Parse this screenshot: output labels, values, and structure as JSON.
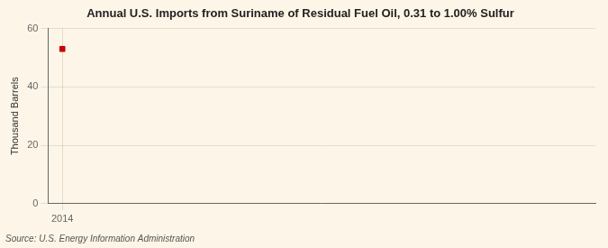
{
  "chart_data": {
    "type": "scatter",
    "title": "Annual U.S. Imports from Suriname of Residual Fuel Oil, 0.31 to 1.00% Sulfur",
    "ylabel": "Thousand Barrels",
    "source": "Source: U.S. Energy Information Administration",
    "x": [
      2014
    ],
    "values": [
      53
    ],
    "color": "#cc0000",
    "marker": "square",
    "xlim": [
      2013.8,
      2021.5
    ],
    "xticks": [
      2014
    ],
    "ylim": [
      0,
      60
    ],
    "yticks": [
      0,
      20,
      40,
      60
    ],
    "grid": true
  }
}
